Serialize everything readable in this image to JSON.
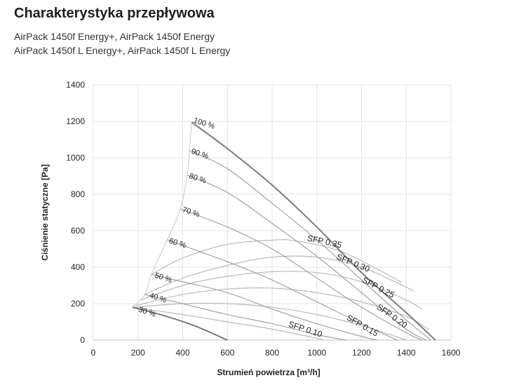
{
  "header": {
    "title": "Charakterystyka przepływowa",
    "subtitle_line1": "AirPack 1450f Energy+, AirPack 1450f Energy",
    "subtitle_line2": "AirPack 1450f L Energy+, AirPack 1450f L Energy"
  },
  "chart_data": {
    "type": "line",
    "xlabel": "Strumień powietrza [m³/h]",
    "ylabel": "Ciśnienie statyczne [Pa]",
    "xlim": [
      0,
      1600
    ],
    "ylim": [
      0,
      1400
    ],
    "xticks": [
      "0",
      "200",
      "400",
      "600",
      "800",
      "1000",
      "1200",
      "1400",
      "1600"
    ],
    "yticks": [
      "0",
      "200",
      "400",
      "600",
      "800",
      "1000",
      "1200",
      "1400"
    ],
    "grid": true,
    "fan_curves": [
      {
        "label": "100 %",
        "x": [
          440,
          600,
          800,
          1000,
          1200,
          1400,
          1530
        ],
        "y": [
          1195,
          1050,
          850,
          620,
          370,
          150,
          0
        ]
      },
      {
        "label": "90 %",
        "x": [
          430,
          600,
          800,
          1000,
          1200,
          1400,
          1510
        ],
        "y": [
          1040,
          940,
          750,
          550,
          330,
          110,
          0
        ]
      },
      {
        "label": "80 %",
        "x": [
          420,
          600,
          800,
          1000,
          1200,
          1400,
          1490
        ],
        "y": [
          905,
          810,
          640,
          460,
          260,
          60,
          0
        ]
      },
      {
        "label": "70 %",
        "x": [
          390,
          600,
          800,
          1000,
          1200,
          1400,
          1470
        ],
        "y": [
          720,
          620,
          500,
          340,
          180,
          40,
          0
        ]
      },
      {
        "label": "60 %",
        "x": [
          330,
          600,
          800,
          1000,
          1200,
          1360
        ],
        "y": [
          550,
          430,
          330,
          210,
          90,
          0
        ]
      },
      {
        "label": "50 %",
        "x": [
          260,
          400,
          600,
          800,
          1000,
          1200,
          1270
        ],
        "y": [
          360,
          320,
          260,
          170,
          90,
          20,
          0
        ]
      },
      {
        "label": "40 %",
        "x": [
          230,
          400,
          600,
          800,
          1000,
          1130
        ],
        "y": [
          250,
          200,
          140,
          90,
          30,
          0
        ]
      },
      {
        "label": "30 %",
        "x": [
          175,
          300,
          450,
          600
        ],
        "y": [
          180,
          140,
          80,
          0
        ]
      }
    ],
    "sfp_curves": [
      {
        "label": "SFP 0.35",
        "x": [
          260,
          400,
          600,
          800,
          900,
          1100,
          1300,
          1380
        ],
        "y": [
          360,
          450,
          525,
          548,
          545,
          490,
          370,
          315
        ]
      },
      {
        "label": "SFP 0.30",
        "x": [
          230,
          400,
          600,
          800,
          1000,
          1200,
          1400,
          1430
        ],
        "y": [
          250,
          340,
          410,
          455,
          455,
          400,
          290,
          265
        ]
      },
      {
        "label": "SFP 0.25",
        "x": [
          210,
          400,
          600,
          800,
          1000,
          1200,
          1400,
          1470
        ],
        "y": [
          220,
          300,
          350,
          375,
          370,
          320,
          220,
          170
        ]
      },
      {
        "label": "SFP 0.20",
        "x": [
          190,
          400,
          600,
          800,
          1000,
          1200,
          1400,
          1500
        ],
        "y": [
          190,
          250,
          280,
          285,
          260,
          210,
          130,
          60
        ]
      },
      {
        "label": "SFP 0.15",
        "x": [
          175,
          400,
          600,
          800,
          1000,
          1200,
          1400
        ],
        "y": [
          180,
          200,
          200,
          180,
          140,
          80,
          0
        ]
      },
      {
        "label": "SFP 0.10",
        "x": [
          175,
          400,
          600,
          800,
          1000,
          1030
        ],
        "y": [
          180,
          140,
          100,
          60,
          10,
          0
        ]
      }
    ],
    "boundary": {
      "x": [
        175,
        230,
        260,
        330,
        390,
        420,
        430,
        440
      ],
      "y": [
        180,
        250,
        360,
        550,
        720,
        905,
        1040,
        1195
      ]
    }
  }
}
